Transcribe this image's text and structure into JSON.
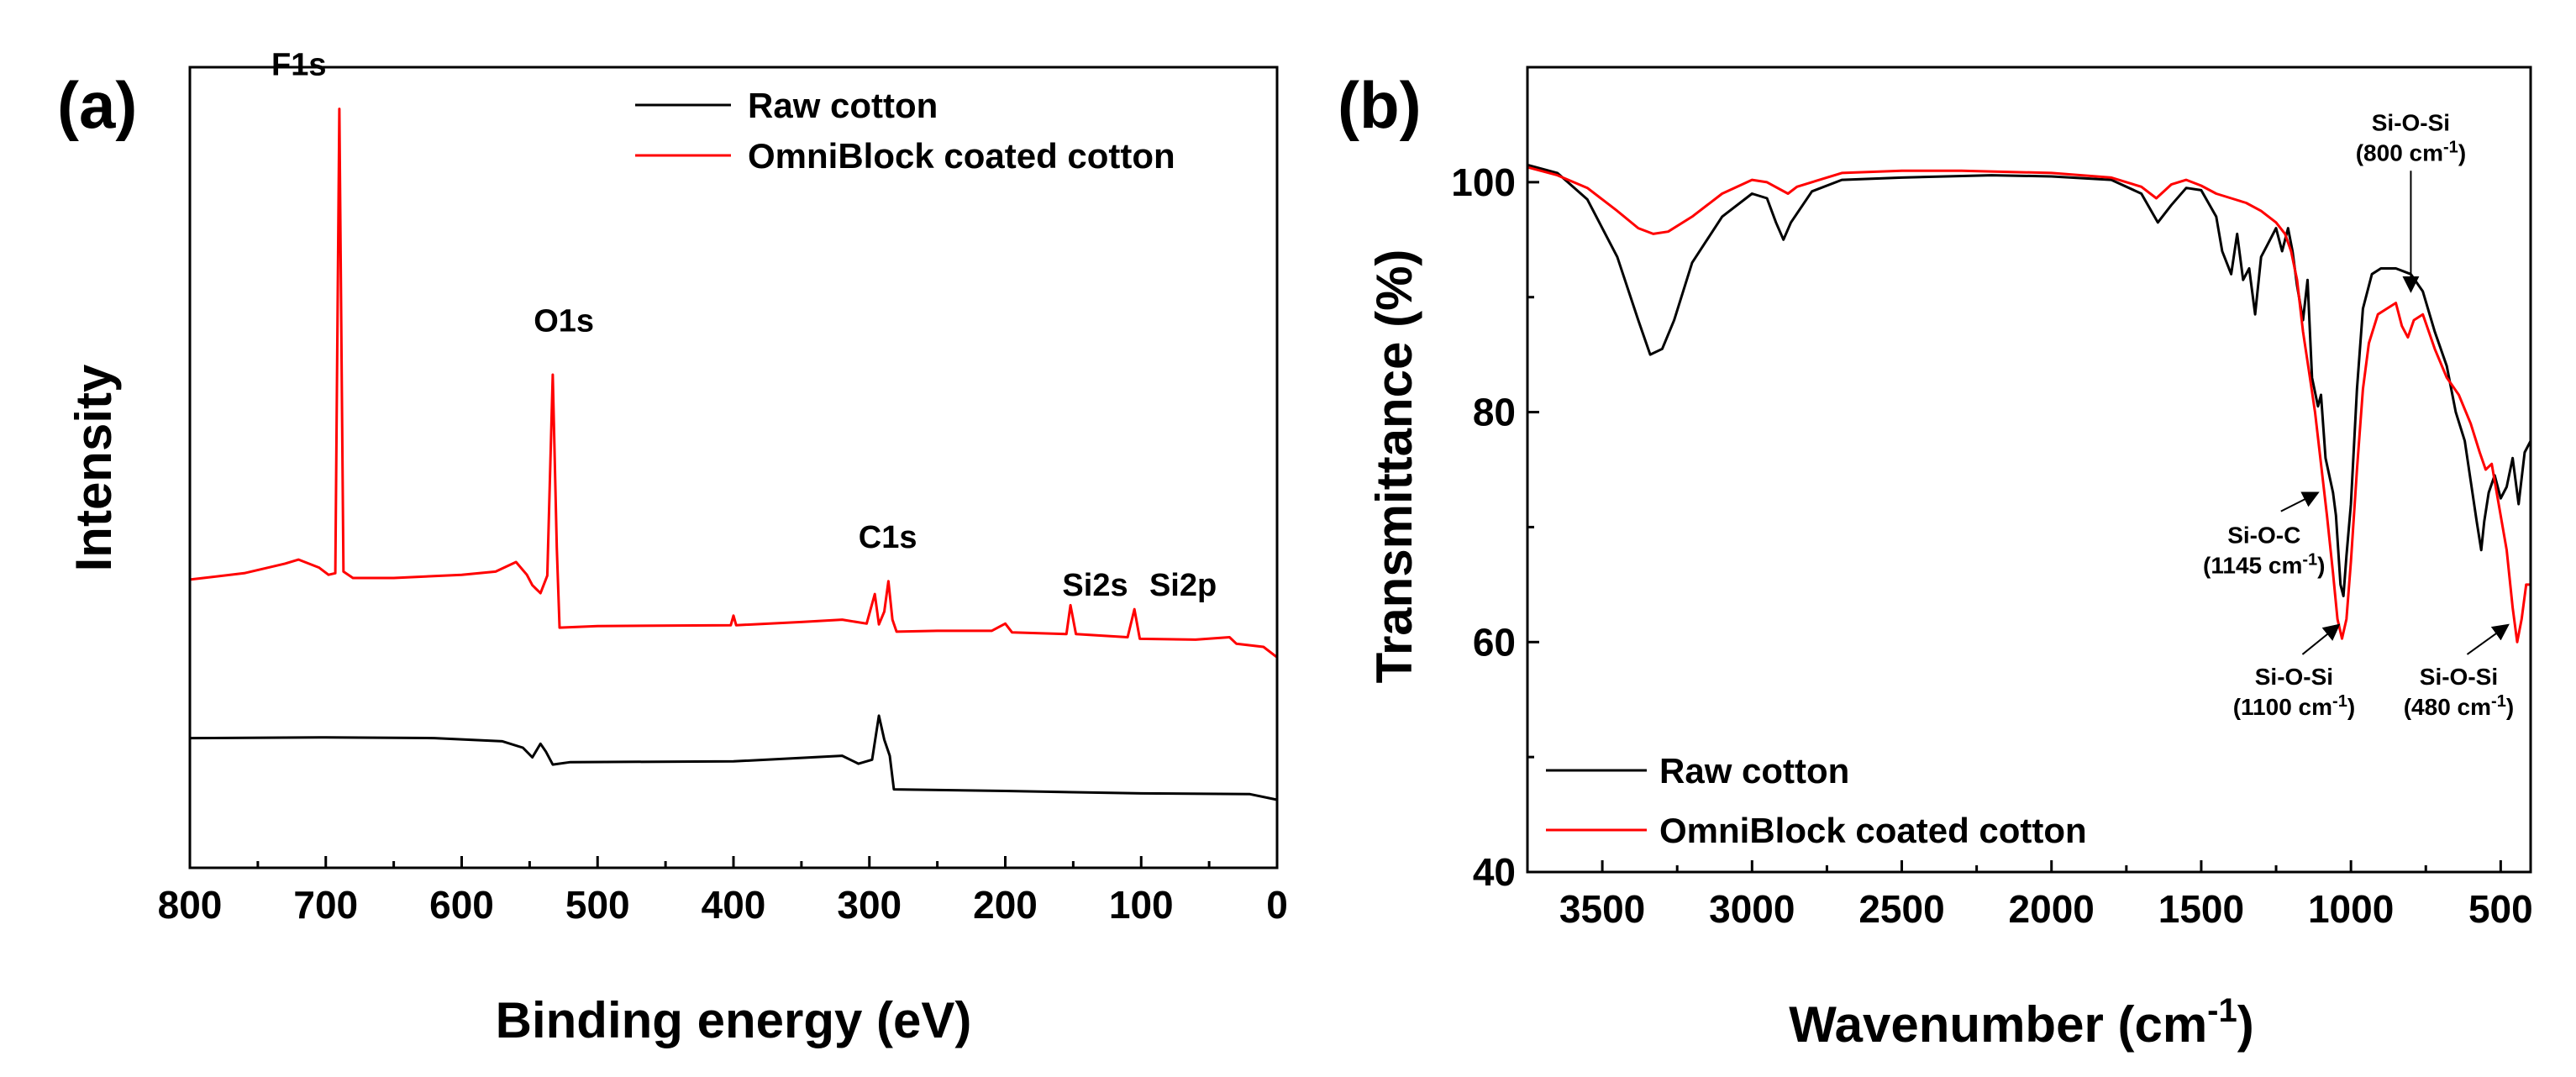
{
  "chart_data": [
    {
      "panel": "(a)",
      "type": "line",
      "xlabel": "Binding energy (eV)",
      "ylabel": "Intensity",
      "xlim": [
        800,
        0
      ],
      "ylim": [
        0,
        100
      ],
      "xticks": [
        800,
        700,
        600,
        500,
        400,
        300,
        200,
        100,
        0
      ],
      "yticks": [],
      "legend": {
        "position": "top-right",
        "entries": [
          "Raw cotton",
          "OmniBlock coated cotton"
        ]
      },
      "series": [
        {
          "name": "Raw cotton",
          "color": "#000000",
          "points": [
            [
              800,
              16.2
            ],
            [
              700,
              16.3
            ],
            [
              620,
              16.2
            ],
            [
              570,
              15.8
            ],
            [
              555,
              15.0
            ],
            [
              548,
              13.8
            ],
            [
              542,
              15.5
            ],
            [
              538,
              14.5
            ],
            [
              533,
              12.9
            ],
            [
              520,
              13.2
            ],
            [
              400,
              13.3
            ],
            [
              320,
              14.0
            ],
            [
              308,
              13.0
            ],
            [
              298,
              13.5
            ],
            [
              293,
              19.0
            ],
            [
              289,
              16.0
            ],
            [
              285,
              14.0
            ],
            [
              282,
              9.8
            ],
            [
              200,
              9.6
            ],
            [
              100,
              9.3
            ],
            [
              20,
              9.2
            ],
            [
              0,
              8.5
            ]
          ]
        },
        {
          "name": "OmniBlock coated cotton",
          "color": "#ff0000",
          "points": [
            [
              800,
              36.0
            ],
            [
              760,
              36.8
            ],
            [
              730,
              38.0
            ],
            [
              720,
              38.5
            ],
            [
              705,
              37.5
            ],
            [
              698,
              36.6
            ],
            [
              693,
              36.8
            ],
            [
              690,
              94.8
            ],
            [
              687,
              37.0
            ],
            [
              680,
              36.2
            ],
            [
              650,
              36.2
            ],
            [
              600,
              36.6
            ],
            [
              575,
              37.0
            ],
            [
              560,
              38.2
            ],
            [
              552,
              36.6
            ],
            [
              548,
              35.3
            ],
            [
              542,
              34.3
            ],
            [
              537,
              36.5
            ],
            [
              533,
              61.6
            ],
            [
              530,
              40.0
            ],
            [
              528,
              30.0
            ],
            [
              500,
              30.2
            ],
            [
              402,
              30.3
            ],
            [
              400,
              31.5
            ],
            [
              398,
              30.3
            ],
            [
              350,
              30.7
            ],
            [
              320,
              31.0
            ],
            [
              302,
              30.5
            ],
            [
              296,
              34.2
            ],
            [
              293,
              30.4
            ],
            [
              289,
              32.0
            ],
            [
              286,
              35.8
            ],
            [
              283,
              31.0
            ],
            [
              280,
              29.5
            ],
            [
              250,
              29.6
            ],
            [
              210,
              29.6
            ],
            [
              200,
              30.5
            ],
            [
              195,
              29.4
            ],
            [
              155,
              29.2
            ],
            [
              152,
              32.8
            ],
            [
              148,
              29.2
            ],
            [
              110,
              28.8
            ],
            [
              105,
              32.3
            ],
            [
              101,
              28.6
            ],
            [
              60,
              28.5
            ],
            [
              35,
              28.8
            ],
            [
              30,
              28.0
            ],
            [
              10,
              27.6
            ],
            [
              0,
              26.3
            ]
          ]
        }
      ],
      "peak_labels": [
        {
          "text": "F1s",
          "x": 740,
          "y": 99
        },
        {
          "text": "O1s",
          "x": 547,
          "y": 67
        },
        {
          "text": "C1s",
          "x": 308,
          "y": 40
        },
        {
          "text": "Si2s",
          "x": 158,
          "y": 34
        },
        {
          "text": "Si2p",
          "x": 94,
          "y": 34
        }
      ]
    },
    {
      "panel": "(b)",
      "type": "line",
      "xlabel": "Wavenumber (cm",
      "xlabel_superscript": "-1",
      "xlabel_suffix": ")",
      "ylabel": "Transmittance (%)",
      "xlim": [
        3750,
        400
      ],
      "ylim": [
        40,
        110
      ],
      "xticks": [
        3500,
        3000,
        2500,
        2000,
        1500,
        1000,
        500
      ],
      "yticks": [
        40,
        60,
        80,
        100
      ],
      "legend": {
        "position": "bottom-left",
        "entries": [
          "Raw cotton",
          "OmniBlock coated cotton"
        ]
      },
      "series": [
        {
          "name": "Raw cotton",
          "color": "#000000",
          "points": [
            [
              3750,
              101.5
            ],
            [
              3650,
              100.8
            ],
            [
              3550,
              98.5
            ],
            [
              3450,
              93.5
            ],
            [
              3380,
              88.0
            ],
            [
              3340,
              85.0
            ],
            [
              3300,
              85.5
            ],
            [
              3260,
              88.0
            ],
            [
              3200,
              93.0
            ],
            [
              3100,
              97.0
            ],
            [
              3000,
              99.0
            ],
            [
              2950,
              98.6
            ],
            [
              2920,
              96.5
            ],
            [
              2895,
              95.0
            ],
            [
              2870,
              96.5
            ],
            [
              2800,
              99.2
            ],
            [
              2700,
              100.2
            ],
            [
              2500,
              100.4
            ],
            [
              2200,
              100.6
            ],
            [
              2000,
              100.5
            ],
            [
              1800,
              100.2
            ],
            [
              1700,
              99.0
            ],
            [
              1645,
              96.5
            ],
            [
              1600,
              98.0
            ],
            [
              1550,
              99.5
            ],
            [
              1500,
              99.3
            ],
            [
              1450,
              97.0
            ],
            [
              1430,
              94.0
            ],
            [
              1400,
              92.0
            ],
            [
              1380,
              95.5
            ],
            [
              1360,
              91.5
            ],
            [
              1340,
              92.5
            ],
            [
              1320,
              88.5
            ],
            [
              1300,
              93.5
            ],
            [
              1280,
              94.5
            ],
            [
              1250,
              96.0
            ],
            [
              1230,
              94.0
            ],
            [
              1210,
              96.0
            ],
            [
              1195,
              94.0
            ],
            [
              1180,
              91.0
            ],
            [
              1160,
              88.0
            ],
            [
              1145,
              91.5
            ],
            [
              1130,
              83.0
            ],
            [
              1110,
              80.5
            ],
            [
              1100,
              81.5
            ],
            [
              1085,
              76.0
            ],
            [
              1060,
              73.0
            ],
            [
              1050,
              71.0
            ],
            [
              1035,
              65.0
            ],
            [
              1025,
              64.0
            ],
            [
              1015,
              67.5
            ],
            [
              1000,
              72.0
            ],
            [
              980,
              82.0
            ],
            [
              960,
              89.0
            ],
            [
              930,
              92.0
            ],
            [
              900,
              92.5
            ],
            [
              850,
              92.5
            ],
            [
              800,
              92.0
            ],
            [
              760,
              90.5
            ],
            [
              720,
              87.0
            ],
            [
              680,
              84.0
            ],
            [
              650,
              80.0
            ],
            [
              620,
              77.5
            ],
            [
              600,
              74.0
            ],
            [
              580,
              70.5
            ],
            [
              565,
              68.0
            ],
            [
              555,
              70.5
            ],
            [
              540,
              73.0
            ],
            [
              520,
              74.5
            ],
            [
              500,
              72.5
            ],
            [
              480,
              73.5
            ],
            [
              460,
              76.0
            ],
            [
              440,
              72.0
            ],
            [
              420,
              76.5
            ],
            [
              400,
              77.5
            ]
          ]
        },
        {
          "name": "OmniBlock coated cotton",
          "color": "#ff0000",
          "points": [
            [
              3750,
              101.3
            ],
            [
              3650,
              100.6
            ],
            [
              3550,
              99.5
            ],
            [
              3450,
              97.5
            ],
            [
              3380,
              96.0
            ],
            [
              3330,
              95.5
            ],
            [
              3280,
              95.7
            ],
            [
              3200,
              97.0
            ],
            [
              3100,
              99.0
            ],
            [
              3000,
              100.2
            ],
            [
              2950,
              100.0
            ],
            [
              2880,
              99.0
            ],
            [
              2850,
              99.6
            ],
            [
              2700,
              100.8
            ],
            [
              2500,
              101.0
            ],
            [
              2300,
              101.0
            ],
            [
              2000,
              100.8
            ],
            [
              1800,
              100.4
            ],
            [
              1700,
              99.6
            ],
            [
              1650,
              98.6
            ],
            [
              1600,
              99.8
            ],
            [
              1550,
              100.2
            ],
            [
              1500,
              99.7
            ],
            [
              1450,
              99.0
            ],
            [
              1400,
              98.6
            ],
            [
              1350,
              98.2
            ],
            [
              1300,
              97.5
            ],
            [
              1250,
              96.5
            ],
            [
              1220,
              95.5
            ],
            [
              1200,
              94.0
            ],
            [
              1180,
              91.5
            ],
            [
              1160,
              87.0
            ],
            [
              1140,
              83.5
            ],
            [
              1120,
              80.0
            ],
            [
              1100,
              75.5
            ],
            [
              1080,
              71.0
            ],
            [
              1060,
              66.0
            ],
            [
              1045,
              62.0
            ],
            [
              1030,
              60.3
            ],
            [
              1015,
              62.0
            ],
            [
              1000,
              67.0
            ],
            [
              980,
              75.0
            ],
            [
              960,
              82.0
            ],
            [
              940,
              86.0
            ],
            [
              910,
              88.5
            ],
            [
              880,
              89.0
            ],
            [
              850,
              89.5
            ],
            [
              830,
              87.5
            ],
            [
              810,
              86.5
            ],
            [
              790,
              88.0
            ],
            [
              760,
              88.5
            ],
            [
              720,
              85.5
            ],
            [
              680,
              83.0
            ],
            [
              640,
              81.5
            ],
            [
              600,
              79.0
            ],
            [
              570,
              76.5
            ],
            [
              550,
              75.0
            ],
            [
              530,
              75.5
            ],
            [
              510,
              72.5
            ],
            [
              480,
              68.0
            ],
            [
              460,
              63.0
            ],
            [
              445,
              60.0
            ],
            [
              430,
              62.0
            ],
            [
              415,
              65.0
            ],
            [
              400,
              65.0
            ]
          ]
        }
      ],
      "annotations": [
        {
          "line1": "Si-O-Si",
          "line2": "(800 cm",
          "sup": "-1",
          "line2_end": ")",
          "x": 800,
          "y": 104.5,
          "arrow_to": [
            800,
            90.5
          ]
        },
        {
          "line1": "Si-O-C",
          "line2": "(1145 cm",
          "sup": "-1",
          "line2_end": ")",
          "x": 1290,
          "y": 68.6,
          "arrow_to": [
            1110,
            73
          ]
        },
        {
          "line1": "Si-O-Si",
          "line2": "(1100 cm",
          "sup": "-1",
          "line2_end": ")",
          "x": 1190,
          "y": 56.3,
          "arrow_to": [
            1040,
            61.5
          ]
        },
        {
          "line1": "Si-O-Si",
          "line2": "(480 cm",
          "sup": "-1",
          "line2_end": ")",
          "x": 640,
          "y": 56.3,
          "arrow_to": [
            475,
            61.5
          ]
        }
      ]
    }
  ]
}
